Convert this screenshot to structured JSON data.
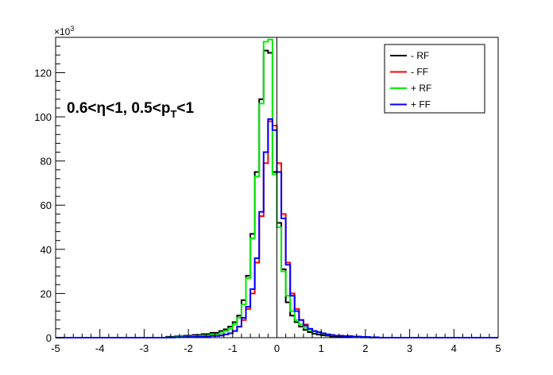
{
  "chart_data": {
    "type": "line",
    "style": "step-histogram",
    "x_range": [
      -5,
      5
    ],
    "y_range": [
      0,
      136
    ],
    "y_multiplier_label": "×10",
    "y_multiplier_exp": "3",
    "x_ticks": [
      "-5",
      "-4",
      "-3",
      "-2",
      "-1",
      "0",
      "1",
      "2",
      "3",
      "4",
      "5"
    ],
    "x_tick_values": [
      -5,
      -4,
      -3,
      -2,
      -1,
      0,
      1,
      2,
      3,
      4,
      5
    ],
    "y_ticks": [
      "0",
      "20",
      "40",
      "60",
      "80",
      "100",
      "120"
    ],
    "y_tick_values": [
      0,
      20,
      40,
      60,
      80,
      100,
      120
    ],
    "annotation": {
      "prefix": "0.6<η<1, 0.5<p",
      "subscript": "T",
      "suffix": "<1"
    },
    "legend_position": "top-right",
    "vertical_line_x": 0,
    "bin_edges": [
      -5.0,
      -2.5,
      -2.3,
      -2.1,
      -1.9,
      -1.7,
      -1.5,
      -1.3,
      -1.2,
      -1.1,
      -1.0,
      -0.9,
      -0.8,
      -0.7,
      -0.6,
      -0.5,
      -0.4,
      -0.3,
      -0.2,
      -0.1,
      0.0,
      0.1,
      0.2,
      0.3,
      0.4,
      0.5,
      0.6,
      0.7,
      0.8,
      0.9,
      1.0,
      1.1,
      1.2,
      1.3,
      1.5,
      1.7,
      1.9,
      2.1,
      2.3,
      2.5,
      5.0
    ],
    "series": [
      {
        "name": "- RF",
        "color": "#000000",
        "values": [
          0,
          0.4,
          0.6,
          0.9,
          1.2,
          1.6,
          2.2,
          3,
          3.8,
          5,
          7,
          10,
          17,
          28,
          47,
          75,
          108,
          130,
          129,
          75,
          52,
          31,
          16,
          10,
          7,
          5,
          3.5,
          2.5,
          1.8,
          1.4,
          1.1,
          0.9,
          0.6,
          0.4,
          0.3,
          0.2,
          0.1,
          0.05,
          0
        ]
      },
      {
        "name": "- FF",
        "color": "#ff0000",
        "values": [
          0,
          0.1,
          0.2,
          0.3,
          0.4,
          0.5,
          0.8,
          1,
          1.5,
          2,
          3,
          5,
          8,
          13,
          20,
          34,
          55,
          79,
          98,
          96,
          79,
          56,
          34,
          20,
          13,
          8,
          6,
          4,
          3,
          2.5,
          2,
          1.5,
          1.2,
          0.9,
          0.7,
          0.5,
          0.3,
          0.2,
          0
        ]
      },
      {
        "name": "+ RF",
        "color": "#00ee00",
        "values": [
          0,
          0.2,
          0.3,
          0.5,
          0.7,
          1,
          1.5,
          2,
          3,
          4,
          6,
          9,
          15,
          27,
          45,
          73,
          106,
          134,
          135,
          74,
          50,
          30,
          19,
          12,
          8,
          6,
          4.5,
          3.5,
          2.8,
          2.3,
          1.8,
          1.4,
          1.1,
          0.9,
          0.7,
          0.5,
          0.3,
          0.2,
          0
        ]
      },
      {
        "name": "+ FF",
        "color": "#0000ff",
        "values": [
          0,
          0.1,
          0.2,
          0.3,
          0.4,
          0.5,
          0.8,
          1,
          1.5,
          2,
          3,
          5,
          9,
          14,
          22,
          36,
          57,
          84,
          99,
          94,
          75,
          54,
          33,
          19,
          12,
          8,
          5.5,
          4,
          3,
          2.5,
          2,
          1.5,
          1.2,
          0.9,
          0.7,
          0.5,
          0.3,
          0.2,
          0
        ]
      }
    ]
  }
}
